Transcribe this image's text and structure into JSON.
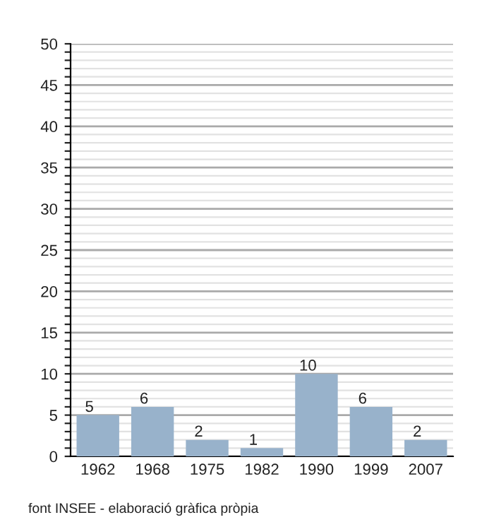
{
  "chart_data": {
    "type": "bar",
    "categories": [
      "1962",
      "1968",
      "1975",
      "1982",
      "1990",
      "1999",
      "2007"
    ],
    "values": [
      5,
      6,
      2,
      1,
      10,
      6,
      2
    ],
    "color": "#98b2cb",
    "ylim": [
      0,
      50
    ],
    "yticks": [
      0,
      {
        "value": 1,
        "label": null
      },
      {
        "value": 2,
        "label": null
      },
      {
        "value": 3,
        "label": null
      },
      {
        "value": 4,
        "label": null
      },
      5,
      {
        "value": 6,
        "label": null
      },
      {
        "value": 7,
        "label": null
      },
      {
        "value": 8,
        "label": null
      },
      {
        "value": 9,
        "label": null
      },
      10,
      {
        "value": 11,
        "label": null
      },
      {
        "value": 12,
        "label": null
      },
      {
        "value": 13,
        "label": null
      },
      {
        "value": 14,
        "label": null
      },
      15,
      {
        "value": 16,
        "label": null
      },
      {
        "value": 17,
        "label": null
      },
      {
        "value": 18,
        "label": null
      },
      {
        "value": 19,
        "label": null
      },
      20,
      {
        "value": 21,
        "label": null
      },
      {
        "value": 22,
        "label": null
      },
      {
        "value": 23,
        "label": null
      },
      {
        "value": 24,
        "label": null
      },
      25,
      {
        "value": 26,
        "label": null
      },
      {
        "value": 27,
        "label": null
      },
      {
        "value": 28,
        "label": null
      },
      {
        "value": 29,
        "label": null
      },
      30,
      {
        "value": 31,
        "label": null
      },
      {
        "value": 32,
        "label": null
      },
      {
        "value": 33,
        "label": null
      },
      {
        "value": 34,
        "label": null
      },
      35,
      {
        "value": 36,
        "label": null
      },
      {
        "value": 37,
        "label": null
      },
      {
        "value": 38,
        "label": null
      },
      {
        "value": 39,
        "label": null
      },
      40,
      {
        "value": 41,
        "label": null
      },
      {
        "value": 42,
        "label": null
      },
      {
        "value": 43,
        "label": null
      },
      {
        "value": 44,
        "label": null
      },
      45,
      {
        "value": 46,
        "label": null
      },
      {
        "value": 47,
        "label": null
      },
      {
        "value": 48,
        "label": null
      },
      {
        "value": 49,
        "label": null
      },
      50
    ],
    "grid": "y",
    "data_labels": true,
    "annotations": [
      "font INSEE - elaboració gràfica pròpia"
    ]
  }
}
